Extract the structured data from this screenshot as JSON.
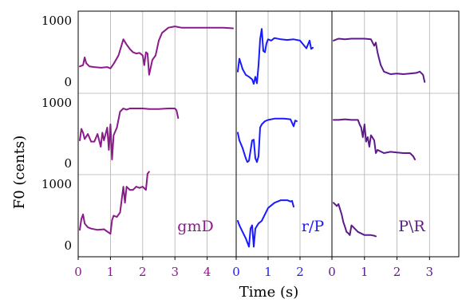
{
  "chart_data": {
    "type": "line",
    "title": "",
    "xlabel": "Time (s)",
    "ylabel": "F0 (cents)",
    "grid": true,
    "y_ticks": [
      {
        "value": 0,
        "label": "0"
      },
      {
        "value": 1000,
        "label": "1000"
      }
    ],
    "columns": [
      {
        "label": "gmD",
        "color": "#8b1a8b",
        "xlim": [
          0,
          4.9
        ],
        "x_ticks": [
          {
            "value": 0,
            "label": "0"
          },
          {
            "value": 1,
            "label": "1"
          },
          {
            "value": 2,
            "label": "2"
          },
          {
            "value": 3,
            "label": "3"
          },
          {
            "value": 4,
            "label": "4"
          }
        ],
        "rows": [
          {
            "x": [
              0.05,
              0.15,
              0.2,
              0.25,
              0.35,
              0.5,
              0.7,
              0.9,
              1.0,
              1.1,
              1.25,
              1.4,
              1.5,
              1.6,
              1.7,
              1.8,
              1.9,
              2.0,
              2.05,
              2.1,
              2.15,
              2.2,
              2.3,
              2.4,
              2.5,
              2.6,
              2.8,
              3.0,
              3.2,
              3.5,
              4.0,
              4.5,
              4.8
            ],
            "y": [
              280,
              300,
              420,
              330,
              280,
              270,
              260,
              270,
              250,
              320,
              450,
              700,
              620,
              550,
              500,
              480,
              490,
              450,
              300,
              500,
              480,
              150,
              380,
              450,
              680,
              800,
              880,
              900,
              880,
              880,
              880,
              880,
              870
            ]
          },
          {
            "x": [
              0.05,
              0.1,
              0.15,
              0.2,
              0.3,
              0.4,
              0.5,
              0.6,
              0.7,
              0.75,
              0.8,
              0.9,
              0.95,
              1.0,
              1.05,
              1.1,
              1.2,
              1.3,
              1.4,
              1.5,
              1.6,
              1.8,
              2.0,
              2.2,
              2.5,
              2.8,
              3.0,
              3.05,
              3.1
            ],
            "y": [
              400,
              580,
              520,
              420,
              500,
              380,
              380,
              500,
              300,
              520,
              400,
              600,
              250,
              650,
              100,
              480,
              600,
              850,
              900,
              880,
              900,
              900,
              900,
              890,
              890,
              900,
              900,
              870,
              750
            ]
          },
          {
            "x": [
              0.05,
              0.1,
              0.15,
              0.2,
              0.3,
              0.4,
              0.6,
              0.8,
              1.0,
              1.05,
              1.1,
              1.2,
              1.3,
              1.4,
              1.45,
              1.5,
              1.6,
              1.7,
              1.8,
              1.9,
              2.0,
              2.1,
              2.15,
              2.2
            ],
            "y": [
              280,
              450,
              520,
              380,
              320,
              300,
              280,
              290,
              220,
              430,
              500,
              480,
              550,
              950,
              700,
              950,
              900,
              900,
              950,
              930,
              950,
              900,
              1150,
              1180
            ]
          }
        ]
      },
      {
        "label": "r/P",
        "color": "#1a1aff",
        "xlim": [
          0,
          3.0
        ],
        "x_ticks": [
          {
            "value": 0,
            "label": "0"
          },
          {
            "value": 1,
            "label": "1"
          },
          {
            "value": 2,
            "label": "2"
          }
        ],
        "rows": [
          {
            "x": [
              0.05,
              0.1,
              0.2,
              0.3,
              0.4,
              0.5,
              0.55,
              0.6,
              0.65,
              0.7,
              0.75,
              0.8,
              0.85,
              0.9,
              0.95,
              1.0,
              1.1,
              1.2,
              1.4,
              1.6,
              1.8,
              2.0,
              2.2,
              2.3,
              2.35,
              2.4
            ],
            "y": [
              200,
              400,
              240,
              150,
              120,
              80,
              10,
              120,
              20,
              300,
              700,
              860,
              520,
              500,
              640,
              700,
              680,
              720,
              700,
              690,
              700,
              680,
              560,
              680,
              550,
              570
            ]
          },
          {
            "x": [
              0.05,
              0.1,
              0.2,
              0.3,
              0.35,
              0.4,
              0.5,
              0.55,
              0.6,
              0.65,
              0.7,
              0.75,
              0.8,
              0.9,
              1.0,
              1.2,
              1.5,
              1.7,
              1.8,
              1.85,
              1.9
            ],
            "y": [
              520,
              400,
              280,
              120,
              60,
              80,
              400,
              410,
              120,
              60,
              150,
              600,
              650,
              700,
              720,
              740,
              740,
              730,
              620,
              710,
              700
            ]
          },
          {
            "x": [
              0.05,
              0.1,
              0.2,
              0.3,
              0.4,
              0.45,
              0.5,
              0.55,
              0.6,
              0.7,
              0.8,
              0.9,
              1.0,
              1.2,
              1.4,
              1.6,
              1.7,
              1.75,
              1.8
            ],
            "y": [
              420,
              350,
              250,
              150,
              20,
              300,
              350,
              20,
              300,
              380,
              420,
              520,
              620,
              700,
              740,
              740,
              720,
              730,
              640
            ]
          }
        ]
      },
      {
        "label": "P\\R",
        "color": "#5e1a8b",
        "xlim": [
          0,
          3.9
        ],
        "x_ticks": [
          {
            "value": 0,
            "label": "0"
          },
          {
            "value": 1,
            "label": "1"
          },
          {
            "value": 2,
            "label": "2"
          },
          {
            "value": 3,
            "label": "3"
          }
        ],
        "rows": [
          {
            "x": [
              0.05,
              0.1,
              0.2,
              0.4,
              0.6,
              0.8,
              1.0,
              1.2,
              1.3,
              1.35,
              1.4,
              1.45,
              1.5,
              1.6,
              1.7,
              1.8,
              2.0,
              2.2,
              2.4,
              2.6,
              2.7,
              2.8,
              2.85
            ],
            "y": [
              680,
              690,
              710,
              700,
              710,
              710,
              710,
              700,
              600,
              650,
              500,
              400,
              300,
              200,
              180,
              160,
              170,
              160,
              170,
              180,
              200,
              150,
              40
            ]
          },
          {
            "x": [
              0.05,
              0.2,
              0.4,
              0.6,
              0.8,
              0.85,
              0.9,
              0.95,
              1.0,
              1.05,
              1.1,
              1.15,
              1.2,
              1.3,
              1.35,
              1.4,
              1.6,
              1.8,
              2.0,
              2.2,
              2.4,
              2.5,
              2.55
            ],
            "y": [
              720,
              720,
              730,
              720,
              720,
              650,
              600,
              450,
              650,
              380,
              450,
              300,
              480,
              400,
              200,
              250,
              200,
              220,
              210,
              200,
              200,
              150,
              100
            ]
          },
          {
            "x": [
              0.05,
              0.15,
              0.2,
              0.25,
              0.3,
              0.35,
              0.4,
              0.45,
              0.5,
              0.55,
              0.6,
              0.8,
              1.0,
              1.2,
              1.3,
              1.35
            ],
            "y": [
              700,
              650,
              680,
              600,
              520,
              400,
              330,
              250,
              230,
              200,
              350,
              250,
              200,
              200,
              190,
              180
            ]
          }
        ]
      }
    ]
  }
}
